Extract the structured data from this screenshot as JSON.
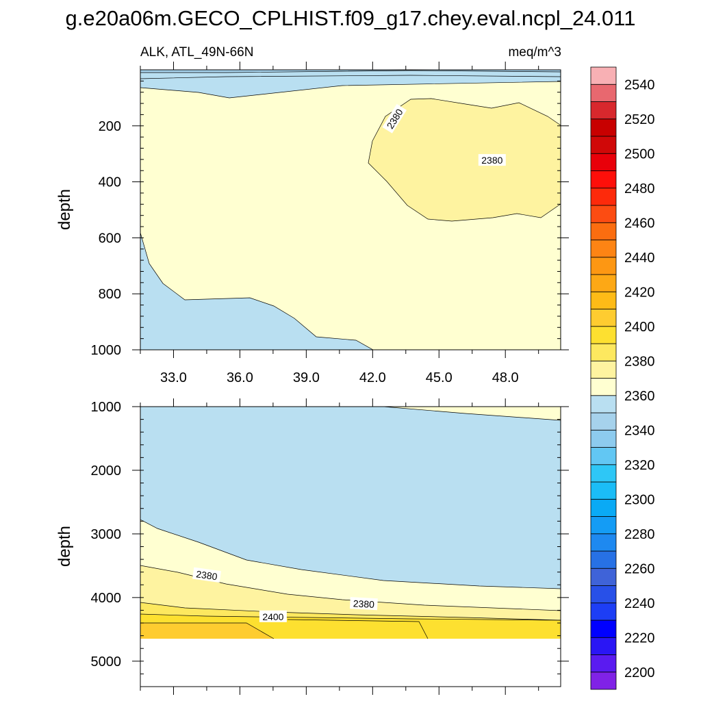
{
  "chart_data": {
    "type": "contour",
    "title": "g.e20a06m.GECO_CPLHIST.f09_g17.chey.eval.ncpl_24.011",
    "subtitle_left": "ALK, ATL_49N-66N",
    "subtitle_right": "meq/m^3",
    "x_ticks": [
      33.0,
      36.0,
      39.0,
      42.0,
      45.0,
      48.0
    ],
    "x_tick_labels": [
      "33.0",
      "36.0",
      "39.0",
      "42.0",
      "45.0",
      "48.0"
    ],
    "xlim": [
      31.5,
      50.5
    ],
    "panels": [
      {
        "ylabel": "depth",
        "ylim": [
          1000,
          0
        ],
        "y_ticks": [
          200,
          400,
          600,
          800,
          1000
        ],
        "y_tick_labels": [
          "200",
          "400",
          "600",
          "800",
          "1000"
        ],
        "contour_labels": [
          {
            "text": "2380",
            "x": 43.0,
            "y": 175,
            "angle": -58
          },
          {
            "text": "2380",
            "x": 47.4,
            "y": 323,
            "angle": 0
          }
        ]
      },
      {
        "ylabel": "depth",
        "ylim": [
          5400,
          1000
        ],
        "y_ticks": [
          1000,
          2000,
          3000,
          4000,
          5000
        ],
        "y_tick_labels": [
          "1000",
          "2000",
          "3000",
          "4000",
          "5000"
        ],
        "contour_labels": [
          {
            "text": "2380",
            "x": 34.5,
            "y": 3650,
            "angle": 8
          },
          {
            "text": "2380",
            "x": 41.6,
            "y": 4100,
            "angle": 3
          },
          {
            "text": "2400",
            "x": 37.5,
            "y": 4300,
            "angle": 0
          }
        ]
      }
    ],
    "colorbar": {
      "labels": [
        "2200",
        "2220",
        "2240",
        "2260",
        "2280",
        "2300",
        "2320",
        "2340",
        "2360",
        "2380",
        "2400",
        "2420",
        "2440",
        "2460",
        "2480",
        "2500",
        "2520",
        "2540"
      ],
      "levels_min": 2190,
      "levels_step": 10,
      "colors": [
        "#8022e6",
        "#5a1bf0",
        "#2a16f5",
        "#0000ff",
        "#1d3ef5",
        "#2850e8",
        "#3f63d8",
        "#2771e5",
        "#1e89f0",
        "#149cf5",
        "#0aaaf5",
        "#1bbdf7",
        "#2ec7f6",
        "#62c7f3",
        "#8dcbee",
        "#a6d2ec",
        "#b9dff1",
        "#ffffd1",
        "#fef3a0",
        "#fde85f",
        "#fde030",
        "#fecc30",
        "#febb17",
        "#fda815",
        "#fd9713",
        "#fd8414",
        "#fb6d10",
        "#fc4c12",
        "#fd2a0b",
        "#fe0f0a",
        "#e8000a",
        "#d00808",
        "#c80000",
        "#d8282d",
        "#e8686f",
        "#f8b0b4"
      ]
    }
  }
}
